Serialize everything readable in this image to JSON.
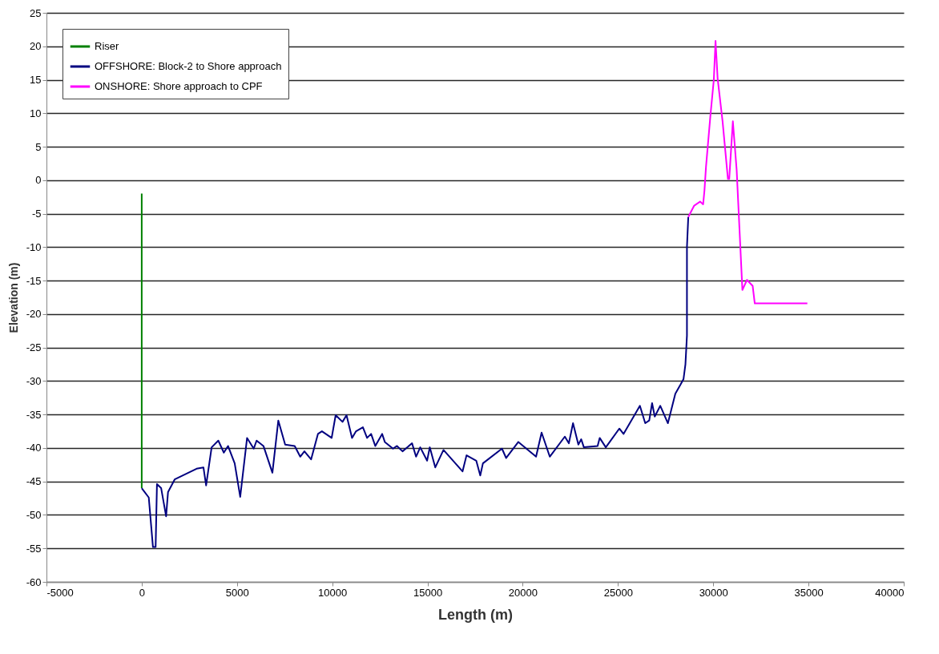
{
  "chart_data": {
    "type": "line",
    "xlabel": "Length  (m)",
    "ylabel": "Elevation (m)",
    "xlim": [
      -5000,
      40000
    ],
    "xticks": [
      -5000,
      0,
      5000,
      10000,
      15000,
      20000,
      25000,
      30000,
      35000,
      40000
    ],
    "ylim": [
      -60,
      25
    ],
    "yticks": [
      -60,
      -55,
      -50,
      -45,
      -40,
      -35,
      -30,
      -25,
      -20,
      -15,
      -10,
      -5,
      0,
      5,
      10,
      15,
      20,
      25
    ],
    "grid": "y",
    "legend": "top left",
    "marker": "none",
    "line_style": "solid",
    "series": [
      {
        "name": "Riser",
        "color": "#008000",
        "x": [
          0,
          0
        ],
        "values": [
          -46,
          -2
        ]
      },
      {
        "name": "OFFSHORE: Block-2 to Shore approach",
        "color": "#000080",
        "x": [
          0,
          370,
          590,
          730,
          800,
          1020,
          1280,
          1380,
          1730,
          2880,
          3240,
          3380,
          3670,
          4020,
          4310,
          4530,
          4880,
          5170,
          5530,
          5880,
          6030,
          6390,
          6860,
          7170,
          7530,
          8030,
          8320,
          8540,
          8890,
          9250,
          9460,
          9970,
          10180,
          10540,
          10750,
          11040,
          11250,
          11610,
          11830,
          12040,
          12260,
          12620,
          12760,
          13190,
          13400,
          13690,
          14190,
          14400,
          14620,
          14980,
          15120,
          15410,
          15840,
          16840,
          17050,
          17560,
          17770,
          17910,
          18910,
          19130,
          19770,
          20700,
          20990,
          21420,
          22210,
          22420,
          22640,
          22920,
          23070,
          23210,
          23930,
          24040,
          24360,
          25070,
          25290,
          26150,
          26430,
          26640,
          26790,
          26930,
          27220,
          27620,
          28010,
          28290,
          28440,
          28540,
          28620,
          28620,
          28690
        ],
        "values": [
          -46,
          -47.4,
          -54.8,
          -54.8,
          -45.4,
          -46,
          -50.2,
          -46.6,
          -44.7,
          -43.1,
          -42.9,
          -45.6,
          -39.9,
          -38.9,
          -40.7,
          -39.7,
          -42.3,
          -47.3,
          -38.5,
          -40.1,
          -38.9,
          -39.7,
          -43.7,
          -35.9,
          -39.5,
          -39.7,
          -41.3,
          -40.5,
          -41.7,
          -37.9,
          -37.5,
          -38.5,
          -35.1,
          -36.1,
          -35.1,
          -38.5,
          -37.5,
          -36.9,
          -38.5,
          -37.9,
          -39.7,
          -37.9,
          -39.1,
          -40.1,
          -39.7,
          -40.5,
          -39.3,
          -41.3,
          -39.9,
          -41.9,
          -39.9,
          -42.9,
          -40.3,
          -43.5,
          -41.1,
          -41.9,
          -44.1,
          -42.3,
          -40.1,
          -41.5,
          -39.1,
          -41.3,
          -37.7,
          -41.3,
          -38.3,
          -39.3,
          -36.3,
          -39.5,
          -38.7,
          -39.9,
          -39.7,
          -38.5,
          -39.9,
          -37.1,
          -37.9,
          -33.7,
          -36.3,
          -35.9,
          -33.3,
          -35.3,
          -33.7,
          -36.3,
          -31.9,
          -30.5,
          -29.7,
          -27.5,
          -23.2,
          -10,
          -5.5
        ]
      },
      {
        "name": "ONSHORE: Shore approach to CPF",
        "color": "#ff00ff",
        "x": [
          28690,
          29000,
          29310,
          29470,
          29540,
          29620,
          29850,
          30030,
          30120,
          30230,
          30490,
          30770,
          30840,
          31030,
          31230,
          31530,
          31770,
          32070,
          32180,
          34940
        ],
        "values": [
          -5.5,
          -3.8,
          -3.2,
          -3.6,
          -1.5,
          2,
          9.6,
          15,
          20.8,
          15.2,
          8.8,
          0.2,
          0.2,
          8.8,
          1.5,
          -16.4,
          -14.9,
          -15.8,
          -18.4,
          -18.4
        ]
      }
    ]
  }
}
